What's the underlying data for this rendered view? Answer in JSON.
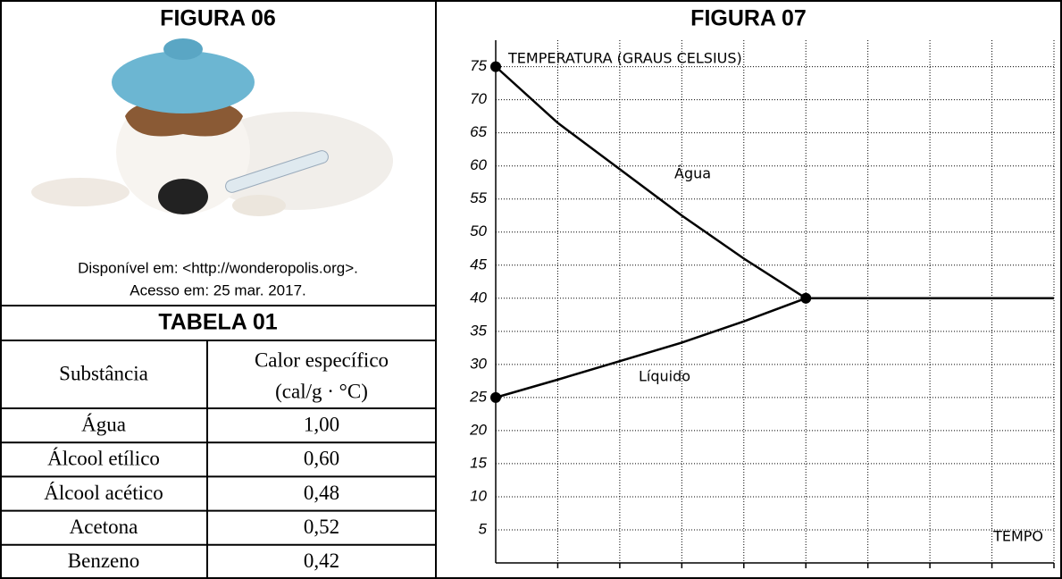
{
  "figure_06": {
    "title": "FIGURA 06",
    "caption": [
      "Disponível em: <http://wonderopolis.org>.",
      "Acesso em: 25 mar. 2017."
    ]
  },
  "table": {
    "title": "TABELA 01",
    "header": [
      "Substância",
      "Calor específico"
    ],
    "unit": "(cal/g · °C)",
    "rows": [
      [
        "Água",
        "1,00"
      ],
      [
        "Álcool etílico",
        "0,60"
      ],
      [
        "Álcool acético",
        "0,48"
      ],
      [
        "Acetona",
        "0,52"
      ],
      [
        "Benzeno",
        "0,42"
      ]
    ]
  },
  "chart_data": {
    "type": "line",
    "title": "FIGURA 07",
    "y_label": "TEMPERATURA (GRAUS CELSIUS)",
    "x_label": "TEMPO",
    "x": [
      0,
      1,
      2,
      3,
      4,
      5,
      6,
      7,
      8,
      9
    ],
    "xlim": [
      0,
      9
    ],
    "xticks": [
      1,
      2,
      3,
      4,
      5,
      6,
      7,
      8,
      9
    ],
    "ylim": [
      0,
      79
    ],
    "yticks": [
      5,
      10,
      15,
      20,
      25,
      30,
      35,
      40,
      45,
      50,
      55,
      60,
      65,
      70,
      75
    ],
    "grid": true,
    "series": [
      {
        "name": "Água",
        "color": "#000000",
        "values": [
          75,
          66.5,
          59.5,
          52.5,
          46,
          40,
          40,
          40,
          40,
          40
        ]
      },
      {
        "name": "Líquido",
        "color": "#000000",
        "values": [
          25,
          27.7,
          30.5,
          33.3,
          36.5,
          40,
          null,
          null,
          null,
          null
        ]
      }
    ]
  }
}
